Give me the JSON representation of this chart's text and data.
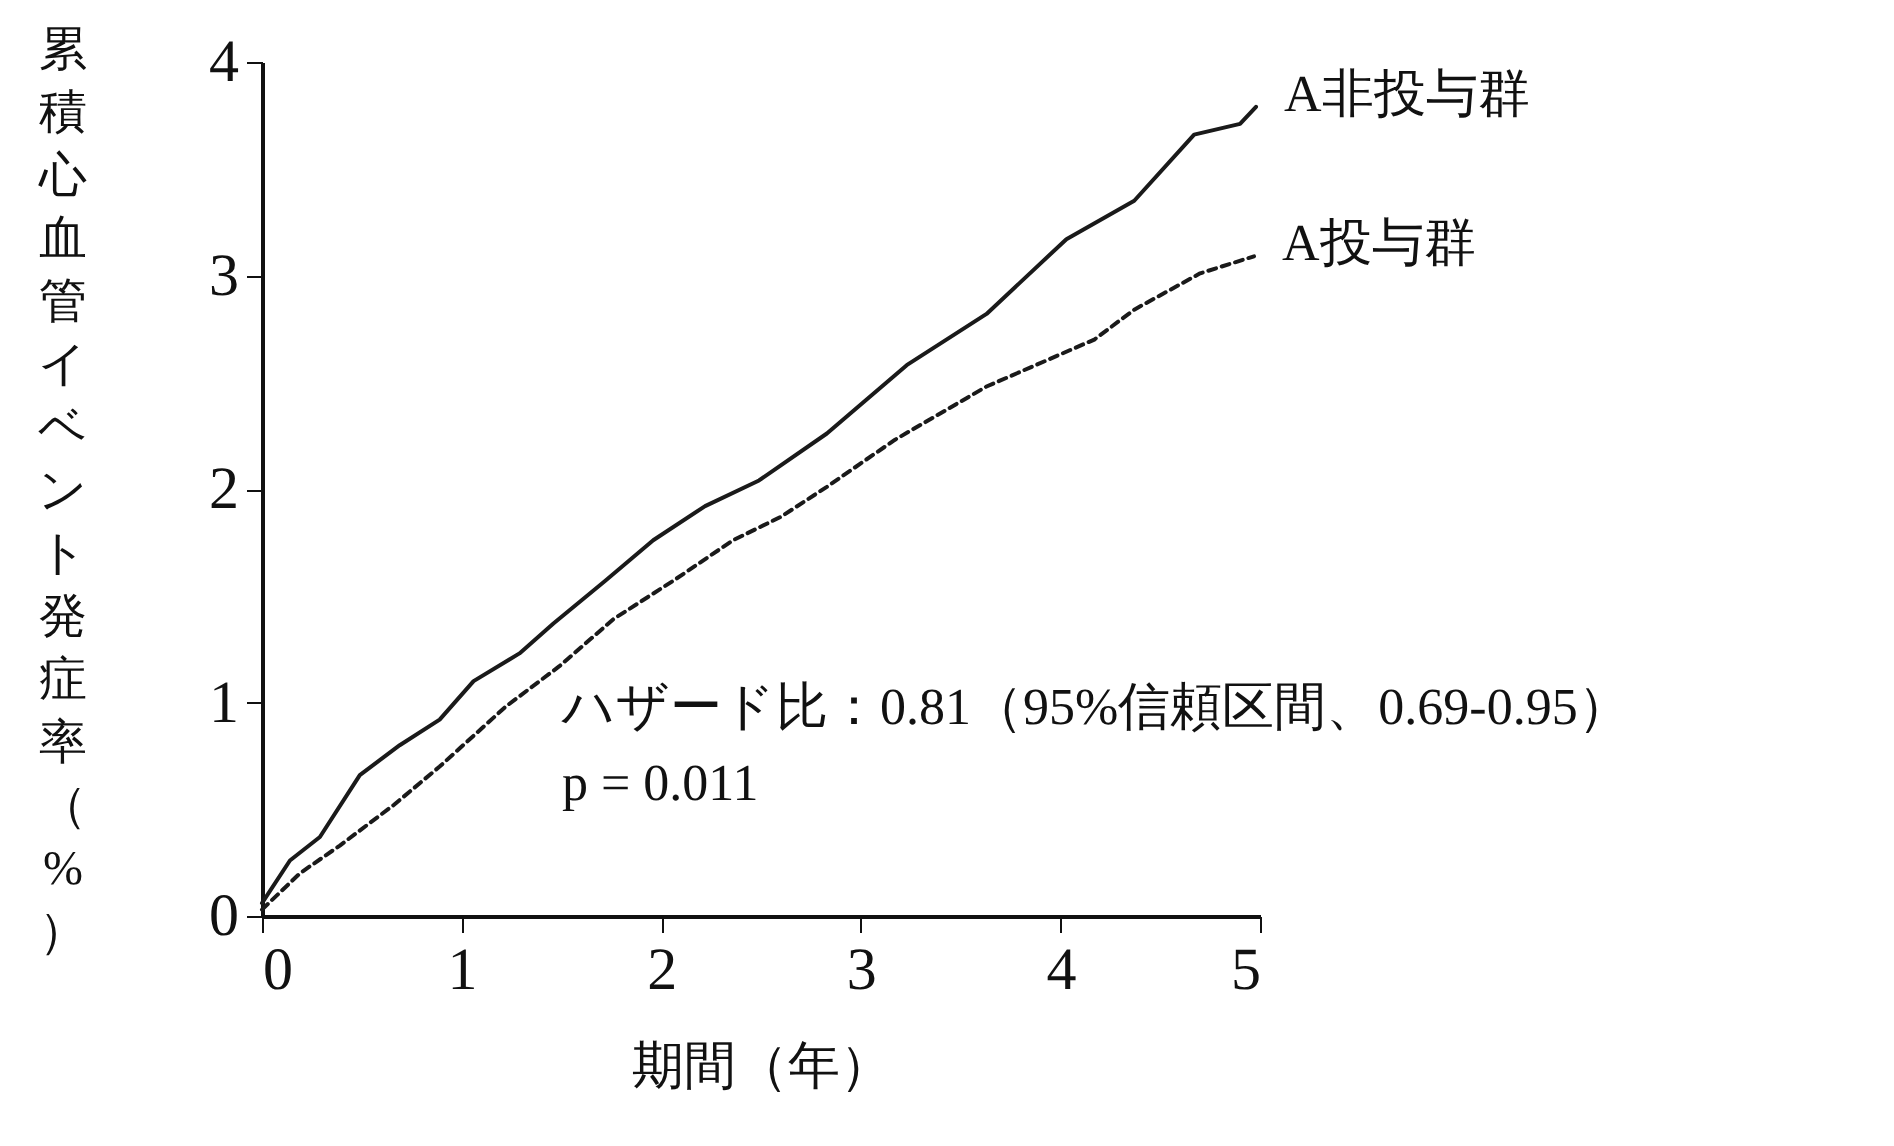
{
  "chart_data": {
    "type": "line",
    "xlabel": "期間（年）",
    "ylabel": "累積心血管イベント発症率（%）",
    "xlim": [
      0,
      5
    ],
    "ylim": [
      0,
      4
    ],
    "xticks": [
      0,
      1,
      2,
      3,
      4,
      5
    ],
    "yticks": [
      0,
      1,
      2,
      3,
      4
    ],
    "grid": false,
    "legend": false,
    "marker": "none",
    "annotations": [
      "ハザード比：0.81（95%信頼区間、0.69-0.95）",
      "p = 0.011"
    ],
    "series": [
      {
        "name": "A非投与群",
        "color": "#1a1a1a",
        "line_style": "solid",
        "x": [
          0,
          0.14,
          0.29,
          0.49,
          0.69,
          0.89,
          1.06,
          1.29,
          1.46,
          1.72,
          1.96,
          2.22,
          2.49,
          2.83,
          3.23,
          3.63,
          4.03,
          4.37,
          4.67,
          4.9,
          4.98
        ],
        "values": [
          0.06,
          0.26,
          0.37,
          0.66,
          0.8,
          0.92,
          1.1,
          1.23,
          1.37,
          1.57,
          1.76,
          1.92,
          2.04,
          2.26,
          2.58,
          2.82,
          3.17,
          3.35,
          3.66,
          3.71,
          3.79
        ]
      },
      {
        "name": "A投与群",
        "color": "#1a1a1a",
        "line_style": "dashed",
        "x": [
          0,
          0.19,
          0.39,
          0.66,
          0.89,
          1.22,
          1.49,
          1.76,
          2.06,
          2.36,
          2.6,
          2.83,
          3.17,
          3.63,
          4.17,
          4.37,
          4.7,
          4.97
        ],
        "values": [
          0.03,
          0.2,
          0.33,
          0.52,
          0.7,
          0.98,
          1.17,
          1.39,
          1.57,
          1.76,
          1.87,
          2.01,
          2.23,
          2.48,
          2.7,
          2.84,
          3.01,
          3.09
        ]
      }
    ]
  }
}
